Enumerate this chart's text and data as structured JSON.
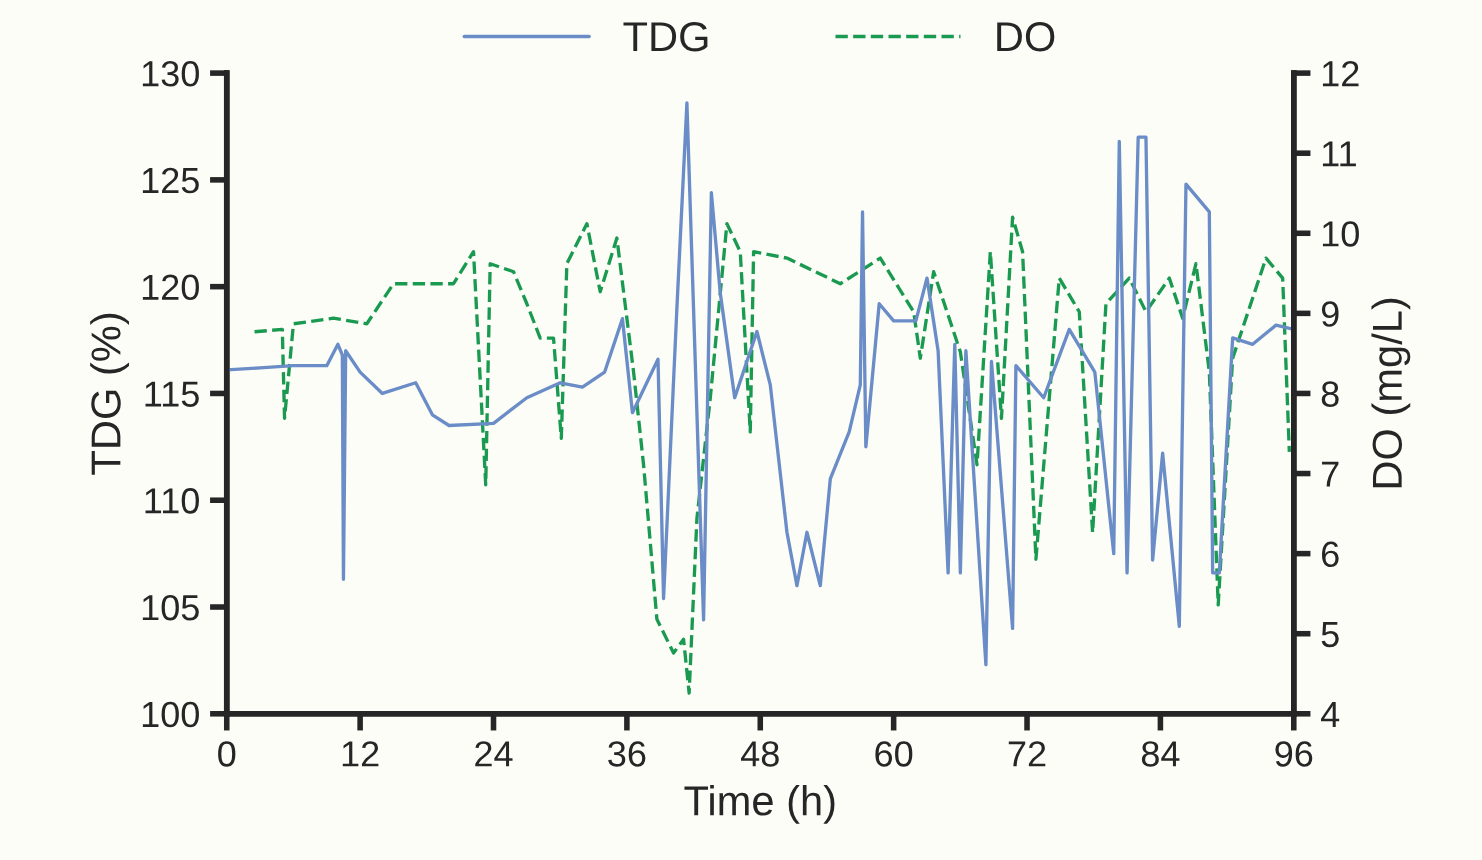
{
  "chart_data": {
    "type": "line",
    "xlabel": "Time (h)",
    "ylabel": "TDG (%)",
    "y2label": "DO (mg/L)",
    "xlim": [
      0,
      96
    ],
    "xticks": [
      0,
      12,
      24,
      36,
      48,
      60,
      72,
      84,
      96
    ],
    "ylim": [
      100,
      130
    ],
    "yticks": [
      100,
      105,
      110,
      115,
      120,
      125,
      130
    ],
    "y2lim": [
      4,
      12
    ],
    "y2ticks": [
      4,
      5,
      6,
      7,
      8,
      9,
      10,
      11,
      12
    ],
    "grid": false,
    "legend": "top",
    "series": [
      {
        "name": "TDG",
        "color": "#6a8cc7",
        "line_style": "solid",
        "x": [
          0,
          3,
          6,
          9,
          10,
          10.4,
          10.5,
          10.7,
          12,
          14,
          17,
          18.5,
          20,
          24,
          27,
          30,
          32,
          34,
          35.6,
          36.5,
          38.8,
          39.3,
          40.5,
          41.4,
          42.9,
          43.6,
          44.4,
          45.7,
          47.7,
          48.9,
          50.4,
          51.3,
          52.2,
          53.4,
          54.3,
          56,
          57,
          57.2,
          57.5,
          58.7,
          60,
          62,
          63,
          64,
          64.9,
          65.5,
          66,
          66.5,
          68.3,
          68.8,
          70.7,
          71,
          73.5,
          75.8,
          78.1,
          79.8,
          80.3,
          81,
          82,
          82.7,
          83.3,
          84.2,
          85.7,
          86.3,
          88.4,
          88.7,
          89.3,
          90.5,
          92.3,
          94.4,
          96
        ],
        "values": [
          116.1,
          116.2,
          116.3,
          116.3,
          117.3,
          116.8,
          106.3,
          117,
          116,
          115,
          115.5,
          114,
          113.5,
          113.6,
          114.8,
          115.5,
          115.3,
          116,
          118.5,
          114.1,
          116.6,
          105.4,
          119,
          128.6,
          104.4,
          124.4,
          119.7,
          114.8,
          117.9,
          115.4,
          108.5,
          106,
          108.5,
          106,
          111,
          113.2,
          115.4,
          123.5,
          112.5,
          119.2,
          118.4,
          118.4,
          120.4,
          117,
          106.6,
          117.3,
          106.6,
          117,
          102.3,
          116.5,
          104,
          116.3,
          114.8,
          118,
          116,
          107.5,
          126.8,
          106.6,
          127,
          127,
          107.2,
          112.2,
          104.1,
          124.8,
          123.5,
          106.6,
          106.6,
          117.6,
          117.3,
          118.2,
          118
        ]
      },
      {
        "name": "DO",
        "color": "#1a9a50",
        "line_style": "dashed",
        "axis": "y2",
        "x": [
          2.5,
          5,
          5.2,
          6,
          9.6,
          12.6,
          15,
          20.4,
          22.2,
          23.3,
          23.7,
          25.8,
          27,
          28.2,
          29.4,
          30.1,
          30.6,
          32.4,
          33.6,
          35.1,
          36.6,
          37.5,
          38.7,
          40.2,
          41.1,
          41.6,
          42.3,
          43.5,
          45,
          46.2,
          47.1,
          47.4,
          50.4,
          55.2,
          58.8,
          61.8,
          62.4,
          63.6,
          66,
          67.5,
          68.7,
          69.7,
          70.7,
          71.6,
          72.8,
          74.9,
          76.7,
          77.9,
          79.1,
          81.2,
          82.7,
          84.8,
          86,
          87.2,
          88.4,
          89.2,
          90.5,
          93.5,
          95,
          95.6
        ],
        "values": [
          8.77,
          8.8,
          7.69,
          8.87,
          8.94,
          8.87,
          9.37,
          9.37,
          9.77,
          6.86,
          9.62,
          9.52,
          9.12,
          8.69,
          8.69,
          7.44,
          9.62,
          10.12,
          9.27,
          9.94,
          8.27,
          7.11,
          5.18,
          4.76,
          4.93,
          4.26,
          6.44,
          7.94,
          10.12,
          9.77,
          7.52,
          9.77,
          9.69,
          9.37,
          9.69,
          9.02,
          8.44,
          9.52,
          8.52,
          7.11,
          9.77,
          7.69,
          10.2,
          9.77,
          5.93,
          9.44,
          9.02,
          6.26,
          9.12,
          9.44,
          9.02,
          9.44,
          8.94,
          9.62,
          8.27,
          5.36,
          8.44,
          9.69,
          9.44,
          7.27
        ]
      }
    ]
  }
}
